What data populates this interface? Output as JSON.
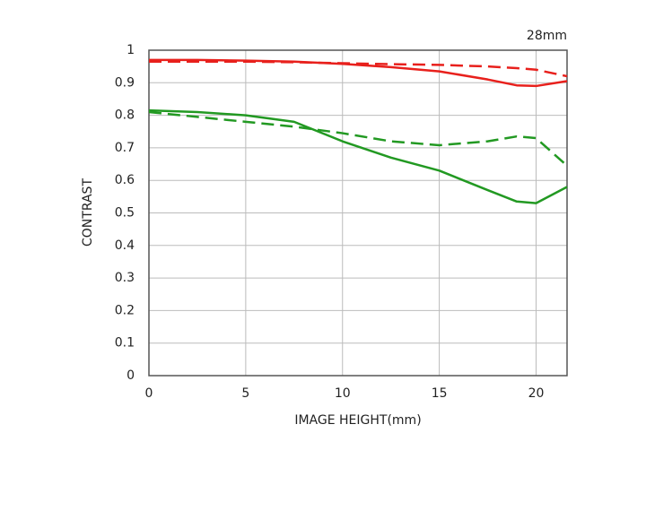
{
  "chart_data": {
    "type": "line",
    "annotation": "28mm",
    "x_label": "IMAGE HEIGHT(mm)",
    "y_label": "CONTRAST",
    "x": [
      0,
      2.5,
      5,
      7.5,
      10,
      12.5,
      15,
      17.5,
      19,
      20,
      21.6
    ],
    "series": [
      {
        "color": "#e8201c",
        "dash": false,
        "values": [
          0.97,
          0.97,
          0.968,
          0.965,
          0.958,
          0.948,
          0.935,
          0.91,
          0.892,
          0.89,
          0.905
        ]
      },
      {
        "color": "#e8201c",
        "dash": true,
        "values": [
          0.965,
          0.965,
          0.965,
          0.963,
          0.96,
          0.957,
          0.955,
          0.95,
          0.945,
          0.94,
          0.92
        ]
      },
      {
        "color": "#229922",
        "dash": false,
        "values": [
          0.815,
          0.81,
          0.8,
          0.78,
          0.72,
          0.67,
          0.63,
          0.57,
          0.535,
          0.53,
          0.58
        ]
      },
      {
        "color": "#229922",
        "dash": true,
        "values": [
          0.81,
          0.795,
          0.78,
          0.765,
          0.745,
          0.72,
          0.708,
          0.72,
          0.735,
          0.73,
          0.645
        ]
      }
    ],
    "xlim": [
      0,
      21.6
    ],
    "ylim": [
      0,
      1
    ],
    "xticks": [
      0,
      5,
      10,
      15,
      20
    ],
    "yticks": [
      0,
      0.1,
      0.2,
      0.3,
      0.4,
      0.5,
      0.6,
      0.7,
      0.8,
      0.9,
      1
    ],
    "grid": true
  }
}
